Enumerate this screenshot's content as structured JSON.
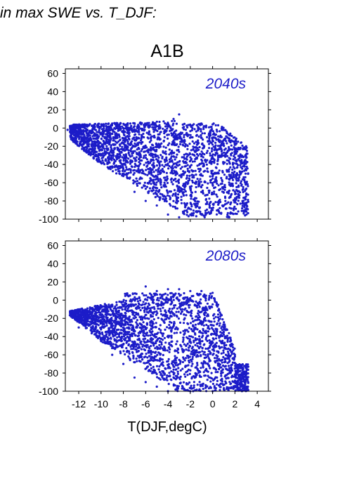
{
  "figure": {
    "heading": "in max SWE vs. T_DJF:",
    "scenario": "A1B",
    "xlabel": "T(DJF,degC)"
  },
  "colors": {
    "points": "#1c1cc8",
    "text": "#000000",
    "panel_label": "#1c1cc8"
  },
  "chart_data": [
    {
      "type": "scatter",
      "panel_label": "2040s",
      "xlim": [
        -13.2,
        5.0
      ],
      "ylim": [
        -100,
        65
      ],
      "xticks": [
        -12,
        -10,
        -8,
        -6,
        -4,
        -2,
        0,
        2,
        4
      ],
      "yticks": [
        60,
        40,
        20,
        0,
        -20,
        -40,
        -60,
        -80,
        -100
      ],
      "xtick_labels_shown": false,
      "grid": false,
      "series": [
        {
          "points": [
            [
              -13.0,
              -2
            ],
            [
              -12.5,
              -3
            ],
            [
              -12.0,
              -8
            ],
            [
              -11.0,
              -3
            ],
            [
              -10.0,
              -5
            ],
            [
              -9.0,
              5
            ],
            [
              -8.0,
              0
            ],
            [
              -7.0,
              2
            ],
            [
              -6.0,
              3
            ],
            [
              -5.0,
              2
            ],
            [
              -4.0,
              5
            ],
            [
              -3.5,
              10
            ],
            [
              -3.0,
              15
            ],
            [
              -2.0,
              3
            ],
            [
              -1.0,
              5
            ],
            [
              0.0,
              4
            ],
            [
              0.5,
              3
            ],
            [
              -11.5,
              -25
            ],
            [
              -10.0,
              -20
            ],
            [
              -9.0,
              -30
            ],
            [
              -8.0,
              -50
            ],
            [
              -7.0,
              -70
            ],
            [
              -6.0,
              -80
            ],
            [
              -5.0,
              -85
            ],
            [
              -4.0,
              -95
            ],
            [
              -3.0,
              -98
            ],
            [
              -2.0,
              -95
            ],
            [
              -1.0,
              -95
            ],
            [
              0.0,
              -90
            ],
            [
              1.0,
              -85
            ],
            [
              2.0,
              -80
            ],
            [
              3.0,
              -60
            ],
            [
              3.0,
              -20
            ],
            [
              2.5,
              -30
            ],
            [
              2.0,
              -70
            ],
            [
              2.8,
              -92
            ],
            [
              1.5,
              -98
            ]
          ]
        }
      ]
    },
    {
      "type": "scatter",
      "panel_label": "2080s",
      "xlim": [
        -13.2,
        5.0
      ],
      "ylim": [
        -100,
        65
      ],
      "xticks": [
        -12,
        -10,
        -8,
        -6,
        -4,
        -2,
        0,
        2,
        4
      ],
      "yticks": [
        60,
        40,
        20,
        0,
        -20,
        -40,
        -60,
        -80,
        -100
      ],
      "xtick_labels_shown": true,
      "grid": false,
      "series": [
        {
          "points": [
            [
              -12.0,
              -15
            ],
            [
              -11.0,
              -10
            ],
            [
              -10.0,
              -8
            ],
            [
              -9.0,
              -5
            ],
            [
              -8.0,
              -5
            ],
            [
              -7.0,
              0
            ],
            [
              -6.0,
              15
            ],
            [
              -5.0,
              10
            ],
            [
              -4.0,
              12
            ],
            [
              -3.0,
              12
            ],
            [
              -2.0,
              10
            ],
            [
              -1.0,
              10
            ],
            [
              0.0,
              8
            ],
            [
              0.5,
              -5
            ],
            [
              1.0,
              -30
            ],
            [
              2.0,
              -60
            ],
            [
              2.8,
              -95
            ],
            [
              -12.0,
              -30
            ],
            [
              -10.0,
              -45
            ],
            [
              -9.0,
              -60
            ],
            [
              -8.0,
              -70
            ],
            [
              -7.0,
              -85
            ],
            [
              -6.0,
              -90
            ],
            [
              -5.0,
              -95
            ],
            [
              -4.0,
              -100
            ],
            [
              -2.0,
              -100
            ],
            [
              0.0,
              -100
            ],
            [
              1.0,
              -98
            ],
            [
              2.0,
              -95
            ],
            [
              3.0,
              -98
            ],
            [
              1.5,
              -80
            ]
          ]
        }
      ]
    }
  ]
}
